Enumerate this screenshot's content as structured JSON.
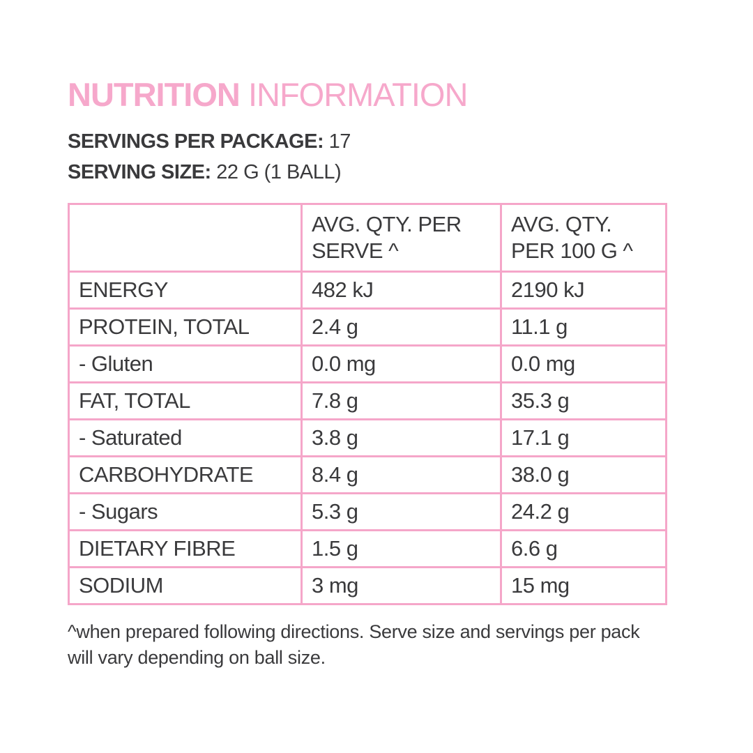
{
  "title": {
    "word_bold": "NUTRITION",
    "word_regular": "INFORMATION"
  },
  "meta": {
    "servings_label": "SERVINGS PER PACKAGE:",
    "servings_value": "17",
    "serving_size_label": "SERVING SIZE:",
    "serving_size_value": "22 G (1 BALL)"
  },
  "table": {
    "columns": [
      {
        "line1": "",
        "line2": ""
      },
      {
        "line1": "AVG. QTY. PER",
        "line2": "SERVE ^"
      },
      {
        "line1": "AVG. QTY.",
        "line2": "PER 100 G ^"
      }
    ],
    "rows": [
      {
        "label": "ENERGY",
        "per_serve": "482 kJ",
        "per_100g": "2190  kJ"
      },
      {
        "label": "PROTEIN, TOTAL",
        "per_serve": "2.4 g",
        "per_100g": "11.1 g"
      },
      {
        "label": "- Gluten",
        "per_serve": "0.0 mg",
        "per_100g": "0.0 mg"
      },
      {
        "label": "FAT, TOTAL",
        "per_serve": "7.8 g",
        "per_100g": "35.3 g"
      },
      {
        "label": "- Saturated",
        "per_serve": "3.8 g",
        "per_100g": "17.1 g"
      },
      {
        "label": "CARBOHYDRATE",
        "per_serve": "8.4 g",
        "per_100g": "38.0 g"
      },
      {
        "label": "- Sugars",
        "per_serve": "5.3 g",
        "per_100g": "24.2 g"
      },
      {
        "label": "DIETARY FIBRE",
        "per_serve": "1.5 g",
        "per_100g": "6.6 g"
      },
      {
        "label": "SODIUM",
        "per_serve": "3 mg",
        "per_100g": "15 mg"
      }
    ]
  },
  "footnote": "^when prepared following directions. Serve size and servings per pack will vary depending on ball size.",
  "colors": {
    "accent_pink": "#F6A8CB",
    "border_pink": "#F5A6C9",
    "text_dark": "#3A3A3C",
    "background": "#FFFFFF"
  }
}
